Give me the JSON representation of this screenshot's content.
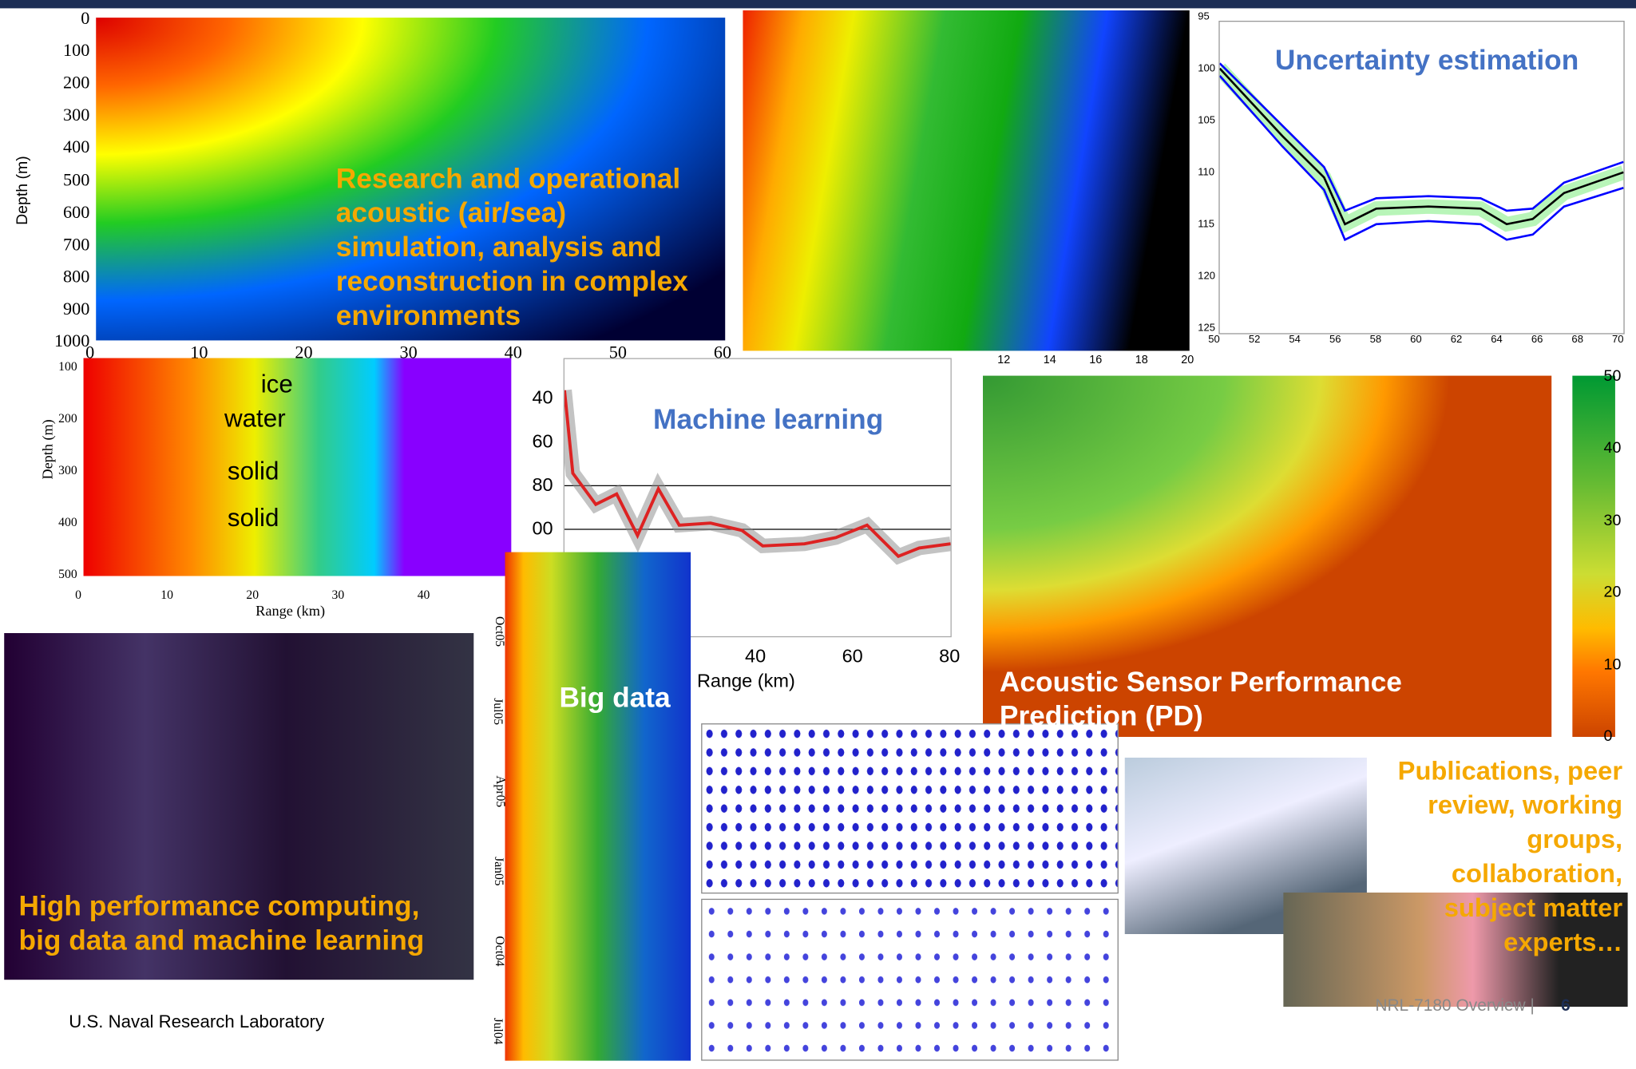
{
  "footer": {
    "org": "U.S. Naval Research Laboratory",
    "page_label": "NRL-7180 Overview |",
    "page_number": "6"
  },
  "panels": {
    "acoustic_sim": {
      "caption": "Research and operational acoustic (air/sea) simulation, analysis and reconstruction in complex environments",
      "y_label": "Depth (m)",
      "y_ticks": [
        "0",
        "100",
        "200",
        "300",
        "400",
        "500",
        "600",
        "700",
        "800",
        "900",
        "1000"
      ],
      "x_ticks": [
        "0",
        "10",
        "20",
        "30",
        "40",
        "50",
        "60"
      ]
    },
    "wedge": {
      "x_ticks": [
        "12",
        "14",
        "16",
        "18",
        "20"
      ]
    },
    "uncertainty": {
      "caption": "Uncertainty estimation",
      "y_ticks": [
        "95",
        "100",
        "105",
        "110",
        "115",
        "120",
        "125"
      ],
      "x_ticks": [
        "50",
        "52",
        "54",
        "56",
        "58",
        "60",
        "62",
        "64",
        "66",
        "68",
        "70"
      ]
    },
    "layers": {
      "y_label": "Depth (m)",
      "x_label": "Range (km)",
      "y_ticks": [
        "100",
        "200",
        "300",
        "400",
        "500"
      ],
      "x_ticks": [
        "0",
        "10",
        "20",
        "30",
        "40"
      ],
      "labels": [
        "ice",
        "water",
        "solid",
        "solid"
      ]
    },
    "machine_learning": {
      "caption": "Machine learning",
      "y_ticks": [
        "40",
        "60",
        "80",
        "00"
      ],
      "x_ticks": [
        "40",
        "60",
        "80"
      ],
      "x_label": "Range (km)"
    },
    "performance": {
      "caption": "Acoustic Sensor Performance Prediction (PD)",
      "colorbar_ticks": [
        "50",
        "40",
        "30",
        "20",
        "10",
        "0"
      ]
    },
    "big_data": {
      "caption": "Big data",
      "y_ticks": [
        "Oct05",
        "Jul05",
        "Apr05",
        "Jan05",
        "Oct04",
        "Jul04"
      ]
    },
    "hpc": {
      "caption": "High performance computing, big data and machine learning"
    },
    "publications": {
      "caption": "Publications, peer review, working groups, collaboration, subject matter experts…"
    }
  }
}
